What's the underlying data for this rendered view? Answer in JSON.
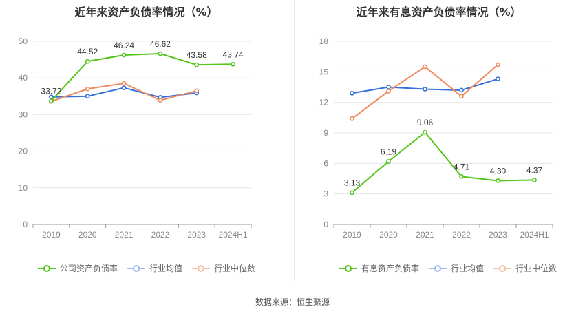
{
  "footer": {
    "source": "数据来源：恒生聚源"
  },
  "colors": {
    "company": "#52c41a",
    "avg": "#3370d9",
    "median": "#f08a5d"
  },
  "chart_data": [
    {
      "type": "line",
      "title": "近年来资产负债率情况（%）",
      "categories": [
        "2019",
        "2020",
        "2021",
        "2022",
        "2023",
        "2024H1"
      ],
      "ylim": [
        0,
        50
      ],
      "yticks": [
        0,
        10,
        20,
        30,
        40,
        50
      ],
      "grid": true,
      "legend_position": "bottom",
      "series": [
        {
          "name": "公司资产负债率",
          "color": "#52c41a",
          "values": [
            33.72,
            44.52,
            46.24,
            46.62,
            43.58,
            43.74
          ],
          "labels": [
            "33.72",
            "44.52",
            "46.24",
            "46.62",
            "43.58",
            "43.74"
          ]
        },
        {
          "name": "行业均值",
          "color": "#3370d9",
          "values": [
            34.8,
            35.0,
            37.3,
            34.7,
            35.9,
            null
          ]
        },
        {
          "name": "行业中位数",
          "color": "#f08a5d",
          "values": [
            33.6,
            37.0,
            38.5,
            33.9,
            36.5,
            null
          ]
        }
      ]
    },
    {
      "type": "line",
      "title": "近年来有息资产负债率情况（%）",
      "categories": [
        "2019",
        "2020",
        "2021",
        "2022",
        "2023",
        "2024H1"
      ],
      "ylim": [
        0,
        18
      ],
      "yticks": [
        0,
        3,
        6,
        9,
        12,
        15,
        18
      ],
      "grid": true,
      "legend_position": "bottom",
      "series": [
        {
          "name": "有息资产负债率",
          "color": "#52c41a",
          "values": [
            3.13,
            6.19,
            9.06,
            4.71,
            4.3,
            4.37
          ],
          "labels": [
            "3.13",
            "6.19",
            "9.06",
            "4.71",
            "4.30",
            "4.37"
          ]
        },
        {
          "name": "行业均值",
          "color": "#3370d9",
          "values": [
            12.9,
            13.5,
            13.3,
            13.2,
            14.3,
            null
          ]
        },
        {
          "name": "行业中位数",
          "color": "#f08a5d",
          "values": [
            10.4,
            13.1,
            15.5,
            12.6,
            15.7,
            null
          ]
        }
      ]
    }
  ]
}
